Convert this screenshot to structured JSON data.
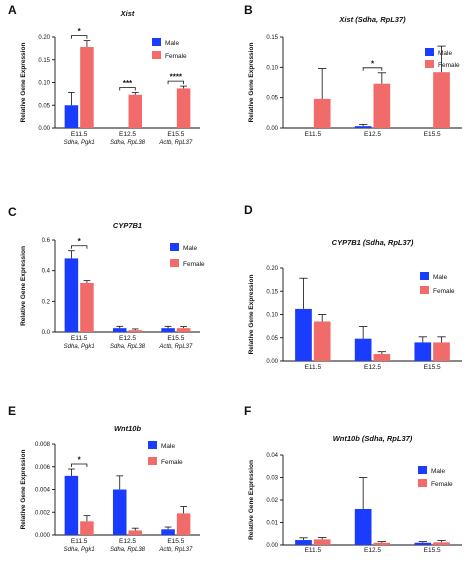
{
  "colors": {
    "male": "#1a3cff",
    "female": "#f26b6b"
  },
  "chart_data": [
    {
      "panel": "A",
      "type": "bar",
      "title": "Xist",
      "ylabel": "Relative Gene Expression",
      "categories": [
        "E11.5",
        "E12.5",
        "E15.5"
      ],
      "category_sublabels": [
        "Sdha, Pgk1",
        "Sdha, RpL38",
        "Actb, RpL37"
      ],
      "ylim": [
        0,
        0.2
      ],
      "yticks": [
        "0.00",
        "0.05",
        "0.10",
        "0.15",
        "0.20"
      ],
      "ytick_values": [
        0,
        0.05,
        0.1,
        0.15,
        0.2
      ],
      "series": [
        {
          "name": "Male",
          "values": [
            0.05,
            null,
            null
          ],
          "errors": [
            0.028,
            null,
            null
          ]
        },
        {
          "name": "Female",
          "values": [
            0.178,
            0.073,
            0.087
          ],
          "errors": [
            0.014,
            0.005,
            0.005
          ]
        }
      ],
      "significance": [
        {
          "label": "*",
          "type": "bracket",
          "from": [
            0,
            0
          ],
          "to": [
            0,
            1
          ]
        },
        {
          "label": "***",
          "type": "bracket",
          "from": [
            1,
            0
          ],
          "to": [
            1,
            1
          ]
        },
        {
          "label": "****",
          "type": "bracket",
          "from": [
            2,
            0
          ],
          "to": [
            2,
            1
          ]
        }
      ],
      "legend": "top-right"
    },
    {
      "panel": "B",
      "type": "bar",
      "title": "Xist (Sdha, RpL37)",
      "ylabel": "Relative Gene Expression",
      "categories": [
        "E11.5",
        "E12.5",
        "E15.5"
      ],
      "category_sublabels": [],
      "ylim": [
        0,
        0.15
      ],
      "yticks": [
        "0.00",
        "0.05",
        "0.10",
        "0.15"
      ],
      "ytick_values": [
        0,
        0.05,
        0.1,
        0.15
      ],
      "series": [
        {
          "name": "Male",
          "values": [
            null,
            0.003,
            null
          ],
          "errors": [
            null,
            0.003,
            null
          ]
        },
        {
          "name": "Female",
          "values": [
            0.048,
            0.073,
            0.092
          ],
          "errors": [
            0.05,
            0.018,
            0.043
          ]
        }
      ],
      "significance": [
        {
          "label": "*",
          "type": "bracket",
          "from": [
            1,
            0
          ],
          "to": [
            1,
            1
          ]
        }
      ],
      "legend": "top-right"
    },
    {
      "panel": "C",
      "type": "bar",
      "title": "CYP7B1",
      "ylabel": "Relative Gene Expression",
      "categories": [
        "E11.5",
        "E12.5",
        "E15.5"
      ],
      "category_sublabels": [
        "Sdha, Pgk1",
        "Sdha, RpL38",
        "Actb, RpL37"
      ],
      "ylim": [
        0,
        0.6
      ],
      "yticks": [
        "0.0",
        "0.2",
        "0.4",
        "0.6"
      ],
      "ytick_values": [
        0,
        0.2,
        0.4,
        0.6
      ],
      "series": [
        {
          "name": "Male",
          "values": [
            0.48,
            0.025,
            0.025
          ],
          "errors": [
            0.05,
            0.012,
            0.012
          ]
        },
        {
          "name": "Female",
          "values": [
            0.32,
            0.012,
            0.025
          ],
          "errors": [
            0.015,
            0.008,
            0.01
          ]
        }
      ],
      "significance": [
        {
          "label": "*",
          "type": "bracket",
          "from": [
            0,
            0
          ],
          "to": [
            0,
            1
          ]
        }
      ],
      "legend": "top-right"
    },
    {
      "panel": "D",
      "type": "bar",
      "title": "CYP7B1  (Sdha, RpL37)",
      "ylabel": "Relative Gene Expression",
      "categories": [
        "E11.5",
        "E12.5",
        "E15.5"
      ],
      "category_sublabels": [],
      "ylim": [
        0,
        0.2
      ],
      "yticks": [
        "0.00",
        "0.05",
        "0.10",
        "0.15",
        "0.20"
      ],
      "ytick_values": [
        0,
        0.05,
        0.1,
        0.15,
        0.2
      ],
      "series": [
        {
          "name": "Male",
          "values": [
            0.112,
            0.048,
            0.04
          ],
          "errors": [
            0.066,
            0.026,
            0.012
          ]
        },
        {
          "name": "Female",
          "values": [
            0.085,
            0.015,
            0.04
          ],
          "errors": [
            0.015,
            0.005,
            0.012
          ]
        }
      ],
      "significance": [],
      "legend": "top-right"
    },
    {
      "panel": "E",
      "type": "bar",
      "title": "Wnt10b",
      "ylabel": "Relative Gene Expression",
      "categories": [
        "E11.5",
        "E12.5",
        "E15.5"
      ],
      "category_sublabels": [
        "Sdha, Pgk1",
        "Sdha, RpL38",
        "Actb, RpL37"
      ],
      "ylim": [
        0,
        0.008
      ],
      "yticks": [
        "0.000",
        "0.002",
        "0.004",
        "0.006",
        "0.008"
      ],
      "ytick_values": [
        0,
        0.002,
        0.004,
        0.006,
        0.008
      ],
      "series": [
        {
          "name": "Male",
          "values": [
            0.0052,
            0.004,
            0.0005
          ],
          "errors": [
            0.0006,
            0.0012,
            0.0002
          ]
        },
        {
          "name": "Female",
          "values": [
            0.0012,
            0.0004,
            0.0019
          ],
          "errors": [
            0.0005,
            0.0002,
            0.0006
          ]
        }
      ],
      "significance": [
        {
          "label": "*",
          "type": "bracket",
          "from": [
            0,
            0
          ],
          "to": [
            0,
            1
          ]
        }
      ],
      "legend": "top-right"
    },
    {
      "panel": "F",
      "type": "bar",
      "title": "Wnt10b (Sdha, RpL37)",
      "ylabel": "Relative Gene Expression",
      "categories": [
        "E11.5",
        "E12.5",
        "E15.5"
      ],
      "category_sublabels": [],
      "ylim": [
        0,
        0.04
      ],
      "yticks": [
        "0.00",
        "0.01",
        "0.02",
        "0.03",
        "0.04"
      ],
      "ytick_values": [
        0,
        0.01,
        0.02,
        0.03,
        0.04
      ],
      "series": [
        {
          "name": "Male",
          "values": [
            0.0022,
            0.016,
            0.001
          ],
          "errors": [
            0.001,
            0.014,
            0.0005
          ]
        },
        {
          "name": "Female",
          "values": [
            0.0025,
            0.001,
            0.0012
          ],
          "errors": [
            0.0008,
            0.0005,
            0.0008
          ]
        }
      ],
      "significance": [],
      "legend": "top-right"
    }
  ]
}
